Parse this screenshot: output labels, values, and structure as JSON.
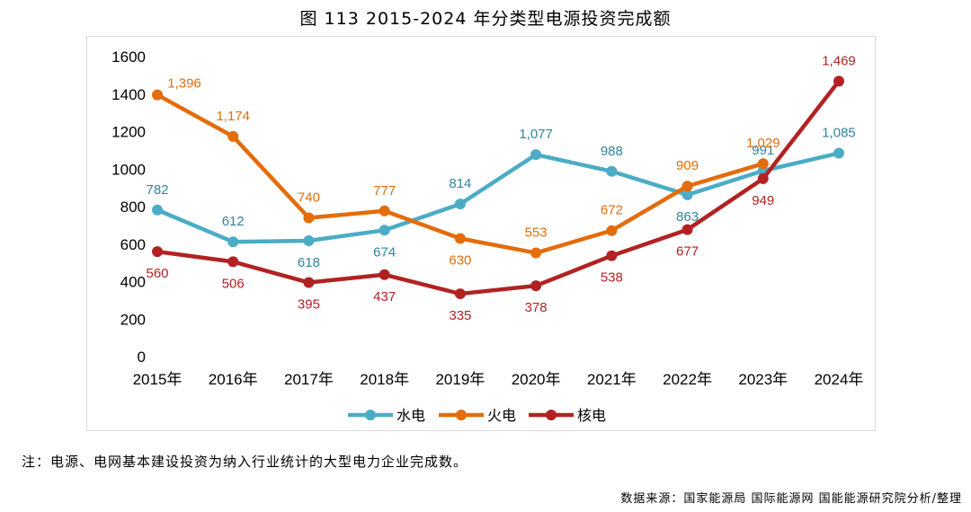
{
  "figure": {
    "title": "图 113 2015-2024 年分类型电源投资完成额",
    "note": "注：电源、电网基本建设投资为纳入行业统计的大型电力企业完成数。",
    "source": "数据来源：国家能源局 国际能源网 国能能源研究院分析/整理"
  },
  "chart_data": {
    "type": "line",
    "x": [
      "2015年",
      "2016年",
      "2017年",
      "2018年",
      "2019年",
      "2020年",
      "2021年",
      "2022年",
      "2023年",
      "2024年"
    ],
    "ylim": [
      0,
      1600
    ],
    "yticks": [
      "0",
      "200",
      "400",
      "600",
      "800",
      "1000",
      "1200",
      "1400",
      "1600"
    ],
    "grid": false,
    "legend_position": "bottom",
    "series": [
      {
        "name": "水电",
        "color": "#4bacc6",
        "values": [
          782,
          612,
          618,
          674,
          814,
          1077,
          988,
          863,
          991,
          1085
        ],
        "labels": [
          "782",
          "612",
          "618",
          "674",
          "814",
          "1,077",
          "988",
          "863",
          "991",
          "1,085"
        ]
      },
      {
        "name": "火电",
        "color": "#e46c0a",
        "values": [
          1396,
          1174,
          740,
          777,
          630,
          553,
          672,
          909,
          1029,
          null
        ],
        "labels": [
          "1,396",
          "1,174",
          "740",
          "777",
          "630",
          "553",
          "672",
          "909",
          "1,029",
          null
        ]
      },
      {
        "name": "核电",
        "color": "#b22222",
        "values": [
          560,
          506,
          395,
          437,
          335,
          378,
          538,
          677,
          949,
          1469
        ],
        "labels": [
          "560",
          "506",
          "395",
          "437",
          "335",
          "378",
          "538",
          "677",
          "949",
          "1,469"
        ]
      }
    ]
  }
}
